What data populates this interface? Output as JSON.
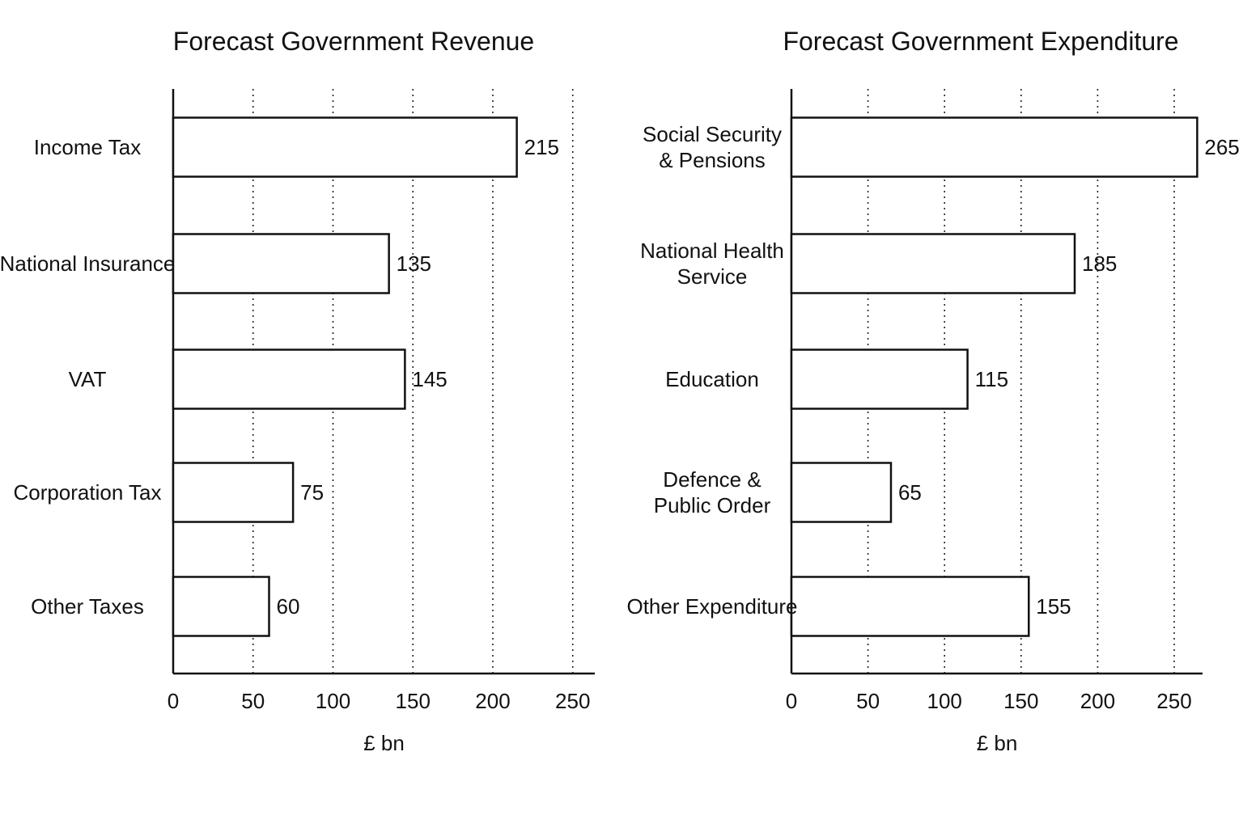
{
  "chart_data": [
    {
      "type": "bar",
      "orientation": "horizontal",
      "title": "Forecast Government Revenue",
      "categories": [
        "Income Tax",
        "National Insurance",
        "VAT",
        "Corporation Tax",
        "Other Taxes"
      ],
      "values": [
        215,
        135,
        145,
        75,
        60
      ],
      "value_labels": [
        "215",
        "135",
        "145",
        "75",
        "60"
      ],
      "xlabel": "£ bn",
      "ylabel": "",
      "xlim": [
        0,
        260
      ],
      "ticks": [
        0,
        50,
        100,
        150,
        200,
        250
      ],
      "grid": "vertical dotted",
      "legend": "none"
    },
    {
      "type": "bar",
      "orientation": "horizontal",
      "title": "Forecast Government Expenditure",
      "categories": [
        "Social Security\n& Pensions",
        "National Health\nService",
        "Education",
        "Defence &\nPublic Order",
        "Other Expenditure"
      ],
      "values": [
        265,
        185,
        115,
        65,
        155
      ],
      "value_labels": [
        "265",
        "185",
        "115",
        "65",
        "155"
      ],
      "xlabel": "£ bn",
      "ylabel": "",
      "xlim": [
        0,
        270
      ],
      "ticks": [
        0,
        50,
        100,
        150,
        200,
        250
      ],
      "grid": "vertical dotted",
      "legend": "none"
    }
  ]
}
